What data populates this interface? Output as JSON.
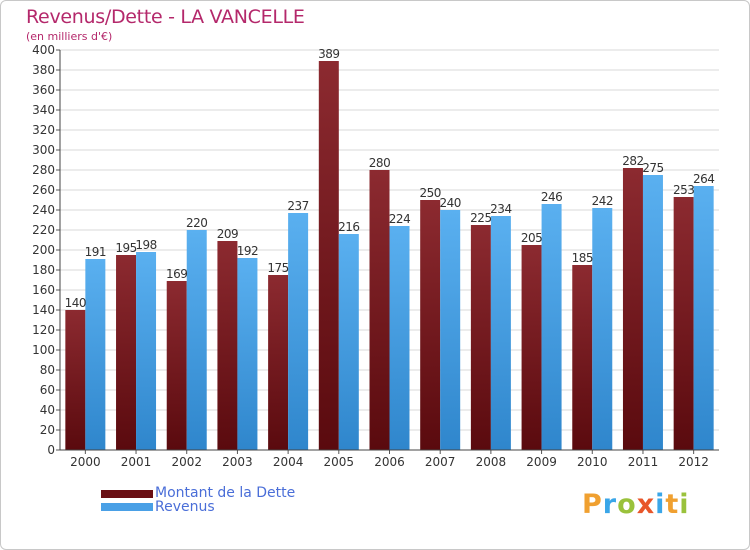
{
  "title": "Revenus/Dette - LA VANCELLE",
  "subtitle": "(en milliers d'€)",
  "chart_data": {
    "type": "bar",
    "categories": [
      "2000",
      "2001",
      "2002",
      "2003",
      "2004",
      "2005",
      "2006",
      "2007",
      "2008",
      "2009",
      "2010",
      "2011",
      "2012"
    ],
    "series": [
      {
        "name": "Montant de la Dette",
        "values": [
          140,
          195,
          169,
          209,
          175,
          389,
          280,
          250,
          225,
          205,
          185,
          282,
          253
        ],
        "color": "#7b1f24"
      },
      {
        "name": "Revenus",
        "values": [
          191,
          198,
          220,
          192,
          237,
          216,
          224,
          240,
          234,
          246,
          242,
          275,
          264
        ],
        "color": "#4aa0e6"
      }
    ],
    "ylim": [
      0,
      400
    ],
    "ytick_step": 20,
    "grid": true,
    "legend_position": "bottom-left",
    "show_data_labels": true
  },
  "legend": {
    "items": [
      {
        "label": "Montant de la Dette",
        "color": "#6a0f14"
      },
      {
        "label": "Revenus",
        "color": "#4aa0e6"
      }
    ]
  },
  "logo": {
    "letters": [
      {
        "ch": "P",
        "color": "#f0a030"
      },
      {
        "ch": "r",
        "color": "#3aa6e8"
      },
      {
        "ch": "o",
        "color": "#9ac23c"
      },
      {
        "ch": "x",
        "color": "#e8562a"
      },
      {
        "ch": "i",
        "color": "#3aa6e8"
      },
      {
        "ch": "t",
        "color": "#f0a030"
      },
      {
        "ch": "i",
        "color": "#9ac23c"
      }
    ]
  }
}
